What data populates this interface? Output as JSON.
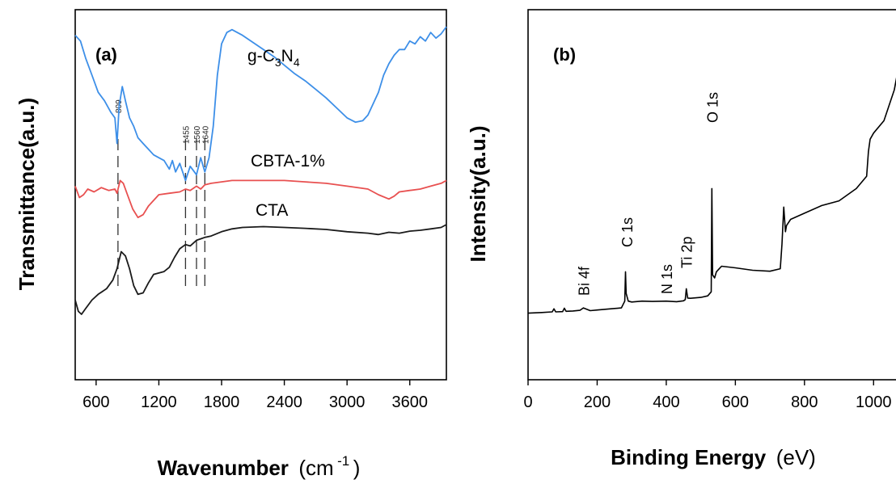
{
  "chart_data": [
    {
      "type": "line",
      "panel_label": "(a)",
      "xlabel": "Wavenumber",
      "xlabel_unit": "(cm",
      "xlabel_unit_sup": "-1",
      "xlabel_unit_close": ")",
      "ylabel": "Transmittance(a.u.)",
      "xlim": [
        400,
        3950
      ],
      "x_ticks": [
        "600",
        "1200",
        "1800",
        "2400",
        "3000",
        "3600"
      ],
      "x_tick_values": [
        600,
        1200,
        1800,
        2400,
        3000,
        3600
      ],
      "y_ticks": [],
      "grid": false,
      "series": [
        {
          "name_parts": [
            "g-C",
            "3",
            "N",
            "4"
          ],
          "color": "#3d8fe8",
          "x": [
            400,
            450,
            500,
            560,
            620,
            680,
            740,
            780,
            800,
            820,
            850,
            880,
            920,
            960,
            1000,
            1050,
            1100,
            1150,
            1200,
            1250,
            1300,
            1330,
            1360,
            1400,
            1455,
            1500,
            1560,
            1600,
            1640,
            1680,
            1720,
            1760,
            1800,
            1850,
            1900,
            1950,
            2000,
            2100,
            2200,
            2300,
            2400,
            2500,
            2600,
            2700,
            2800,
            2900,
            3000,
            3080,
            3150,
            3200,
            3300,
            3350,
            3400,
            3450,
            3500,
            3550,
            3600,
            3650,
            3700,
            3750,
            3800,
            3850,
            3900,
            3950
          ],
          "y": [
            6.6,
            6.4,
            5.8,
            5.2,
            4.6,
            4.3,
            3.9,
            3.7,
            2.8,
            4.1,
            4.8,
            4.3,
            3.7,
            3.4,
            3.0,
            2.8,
            2.6,
            2.4,
            2.3,
            2.2,
            1.9,
            2.2,
            1.8,
            2.1,
            1.5,
            2.0,
            1.7,
            2.3,
            1.8,
            2.3,
            3.4,
            5.2,
            6.3,
            6.7,
            6.8,
            6.7,
            6.6,
            6.35,
            6.1,
            5.85,
            5.55,
            5.25,
            5.0,
            4.7,
            4.4,
            4.05,
            3.7,
            3.55,
            3.6,
            3.8,
            4.6,
            5.2,
            5.6,
            5.9,
            6.1,
            6.1,
            6.4,
            6.3,
            6.55,
            6.4,
            6.7,
            6.5,
            6.65,
            6.9
          ]
        },
        {
          "name": "CBTA-1%",
          "color": "#e85050",
          "x": [
            400,
            440,
            480,
            520,
            580,
            650,
            720,
            780,
            800,
            830,
            860,
            900,
            950,
            1000,
            1050,
            1100,
            1150,
            1200,
            1300,
            1400,
            1455,
            1500,
            1560,
            1600,
            1640,
            1700,
            1800,
            1900,
            2000,
            2200,
            2400,
            2600,
            2800,
            3000,
            3200,
            3300,
            3400,
            3450,
            3500,
            3600,
            3700,
            3800,
            3900,
            3950
          ],
          "y": [
            1.3,
            0.9,
            1.0,
            1.2,
            1.1,
            1.25,
            1.15,
            1.2,
            1.05,
            1.5,
            1.4,
            1.0,
            0.5,
            0.2,
            0.3,
            0.6,
            0.8,
            1.0,
            1.05,
            1.1,
            1.2,
            1.15,
            1.3,
            1.2,
            1.35,
            1.4,
            1.45,
            1.5,
            1.5,
            1.5,
            1.5,
            1.45,
            1.4,
            1.3,
            1.2,
            1.0,
            0.85,
            0.95,
            1.1,
            1.15,
            1.2,
            1.3,
            1.4,
            1.5
          ]
        },
        {
          "name": "CTA",
          "color": "#1a1a1a",
          "x": [
            400,
            430,
            460,
            500,
            560,
            620,
            700,
            760,
            800,
            840,
            880,
            920,
            960,
            1000,
            1050,
            1100,
            1150,
            1200,
            1250,
            1300,
            1350,
            1400,
            1455,
            1500,
            1560,
            1600,
            1640,
            1700,
            1800,
            1900,
            2000,
            2200,
            2400,
            2600,
            2800,
            3000,
            3200,
            3300,
            3400,
            3500,
            3600,
            3700,
            3800,
            3900,
            3950
          ],
          "y": [
            -2.7,
            -3.1,
            -3.2,
            -3.0,
            -2.7,
            -2.5,
            -2.3,
            -2.0,
            -1.6,
            -1.0,
            -1.15,
            -1.6,
            -2.2,
            -2.5,
            -2.45,
            -2.1,
            -1.8,
            -1.75,
            -1.7,
            -1.55,
            -1.2,
            -0.9,
            -0.75,
            -0.8,
            -0.6,
            -0.55,
            -0.5,
            -0.45,
            -0.3,
            -0.2,
            -0.15,
            -0.12,
            -0.15,
            -0.18,
            -0.22,
            -0.3,
            -0.35,
            -0.4,
            -0.32,
            -0.35,
            -0.28,
            -0.25,
            -0.2,
            -0.15,
            -0.05
          ]
        }
      ],
      "marker_lines": [
        {
          "x": 809,
          "label": "809"
        },
        {
          "x": 1455,
          "label": "1455"
        },
        {
          "x": 1560,
          "label": "1560"
        },
        {
          "x": 1640,
          "label": "1640"
        }
      ],
      "ylim": [
        -5.5,
        7.5
      ]
    },
    {
      "type": "line",
      "panel_label": "(b)",
      "xlabel": "Binding Energy",
      "xlabel_unit": "(eV)",
      "ylabel": "Intensity(a.u.)",
      "xlim": [
        0,
        1100
      ],
      "x_ticks": [
        "0",
        "200",
        "400",
        "600",
        "800",
        "1000"
      ],
      "x_tick_values": [
        0,
        200,
        400,
        600,
        800,
        1000
      ],
      "y_ticks": [],
      "grid": false,
      "series": [
        {
          "color": "#000000",
          "x": [
            0,
            40,
            70,
            75,
            80,
            100,
            105,
            110,
            130,
            150,
            160,
            180,
            200,
            240,
            270,
            280,
            282,
            284,
            290,
            300,
            330,
            360,
            400,
            430,
            450,
            455,
            458,
            462,
            470,
            500,
            520,
            530,
            532,
            534,
            540,
            545,
            560,
            600,
            650,
            700,
            730,
            735,
            740,
            745,
            748,
            760,
            800,
            850,
            900,
            950,
            980,
            985,
            990,
            1000,
            1030,
            1060,
            1080,
            1100
          ],
          "y": [
            1.6,
            1.8,
            2.0,
            3.0,
            2.0,
            2.1,
            3.2,
            2.2,
            2.3,
            2.5,
            3.3,
            2.4,
            2.6,
            3.0,
            3.3,
            5.5,
            15.0,
            8.0,
            5.5,
            5.2,
            5.5,
            5.4,
            5.5,
            5.3,
            5.6,
            6.0,
            9.5,
            6.5,
            6.4,
            6.7,
            7.2,
            8.5,
            42.0,
            14.0,
            13.0,
            15.0,
            16.8,
            16.3,
            15.5,
            15.2,
            16.0,
            24.0,
            36.0,
            28.0,
            30.0,
            32.0,
            34.0,
            36.5,
            38.0,
            42.0,
            46.0,
            54.0,
            58.0,
            60.0,
            64.0,
            74.0,
            86.0,
            95.0
          ]
        }
      ],
      "peak_labels": [
        {
          "x": 160,
          "label": "Bi 4f"
        },
        {
          "x": 285,
          "label": "C 1s"
        },
        {
          "x": 400,
          "label": "N 1s"
        },
        {
          "x": 458,
          "label": "Ti 2p"
        },
        {
          "x": 532,
          "label": "O 1s"
        }
      ],
      "ylim": [
        -20,
        100
      ]
    }
  ]
}
